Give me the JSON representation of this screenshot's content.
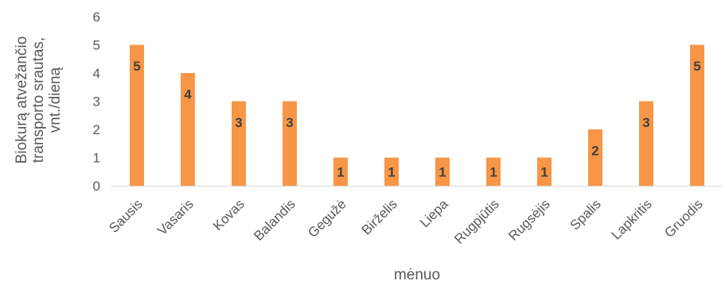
{
  "chart_data": {
    "type": "bar",
    "categories": [
      "Sausis",
      "Vasaris",
      "Kovas",
      "Balandis",
      "Gegužė",
      "Birželis",
      "Liepa",
      "Rugpjūtis",
      "Rugsėjis",
      "Spalis",
      "Lapkritis",
      "Gruodis"
    ],
    "values": [
      5,
      4,
      3,
      3,
      1,
      1,
      1,
      1,
      1,
      2,
      3,
      5
    ],
    "xlabel": "mėnuo",
    "ylabel_lines": [
      "Biokurą atvežančio",
      "transporto srautas,",
      "vnt./dieną"
    ],
    "ylim": [
      0,
      6
    ],
    "yticks": [
      0,
      1,
      2,
      3,
      4,
      5,
      6
    ],
    "bar_color": "#F79646",
    "grid": false,
    "legend": "none",
    "data_labels": true
  }
}
